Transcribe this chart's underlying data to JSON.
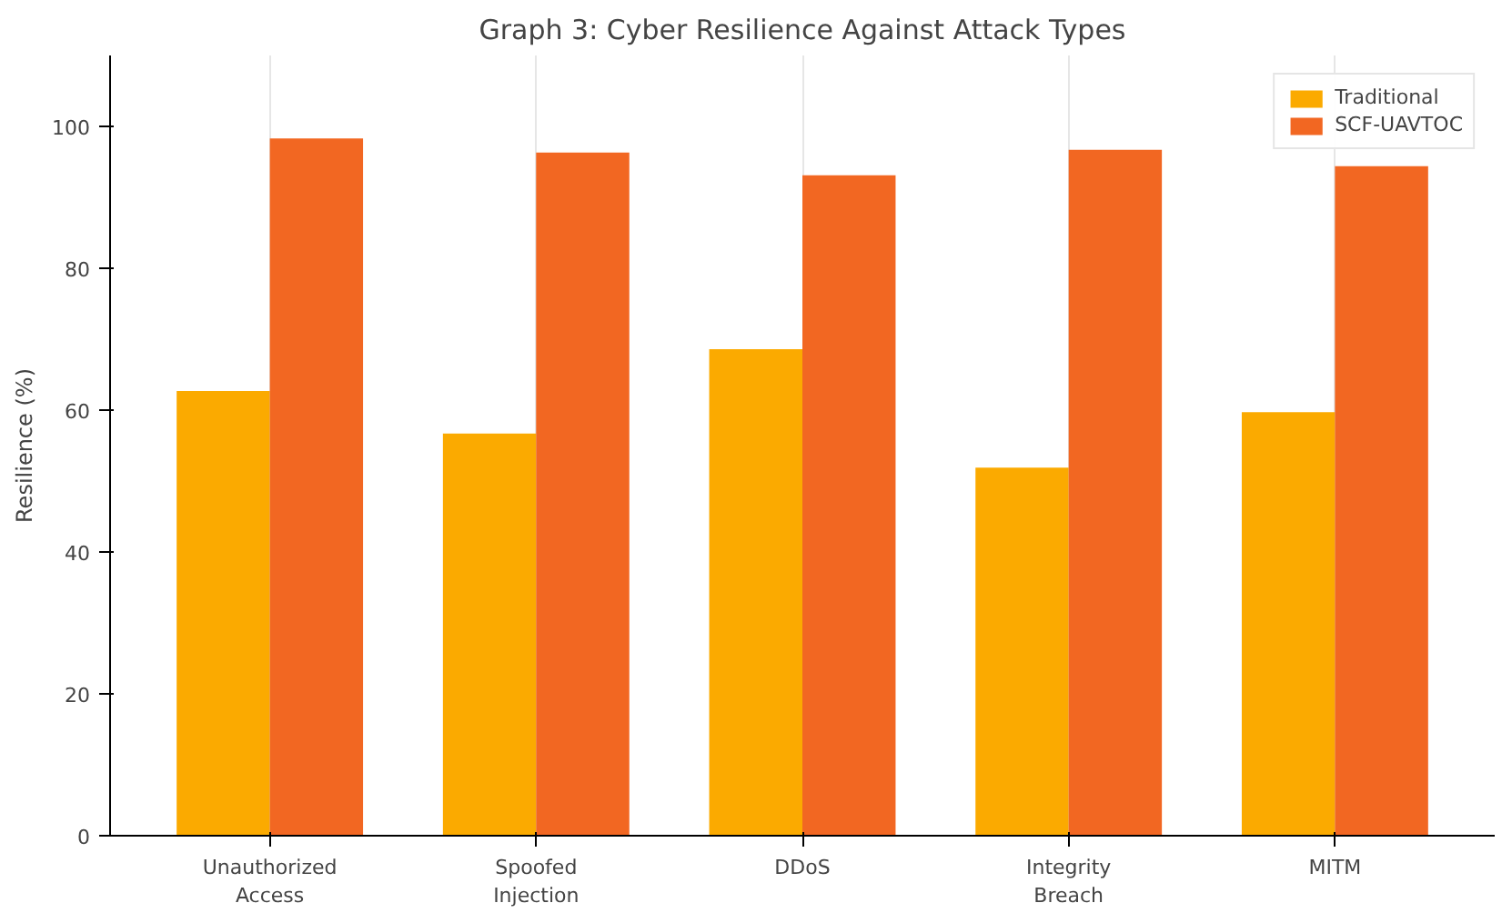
{
  "chart_data": {
    "type": "bar",
    "title": "Graph 3: Cyber Resilience Against Attack Types",
    "ylabel": "Resilience (%)",
    "categories": [
      "Unauthorized\nAccess",
      "Spoofed\nInjection",
      "DDoS",
      "Integrity\nBreach",
      "MITM"
    ],
    "series": [
      {
        "name": "Traditional",
        "color": "#fbaa00",
        "values": [
          62.7,
          56.7,
          68.6,
          51.9,
          59.7
        ]
      },
      {
        "name": "SCF-UAVTOC",
        "color": "#f26722",
        "values": [
          98.3,
          96.3,
          93.1,
          96.7,
          94.4
        ]
      }
    ],
    "ylim": [
      0,
      110
    ],
    "yticks": [
      0,
      20,
      40,
      60,
      80,
      100
    ],
    "grid": "x",
    "legend": "top right"
  }
}
